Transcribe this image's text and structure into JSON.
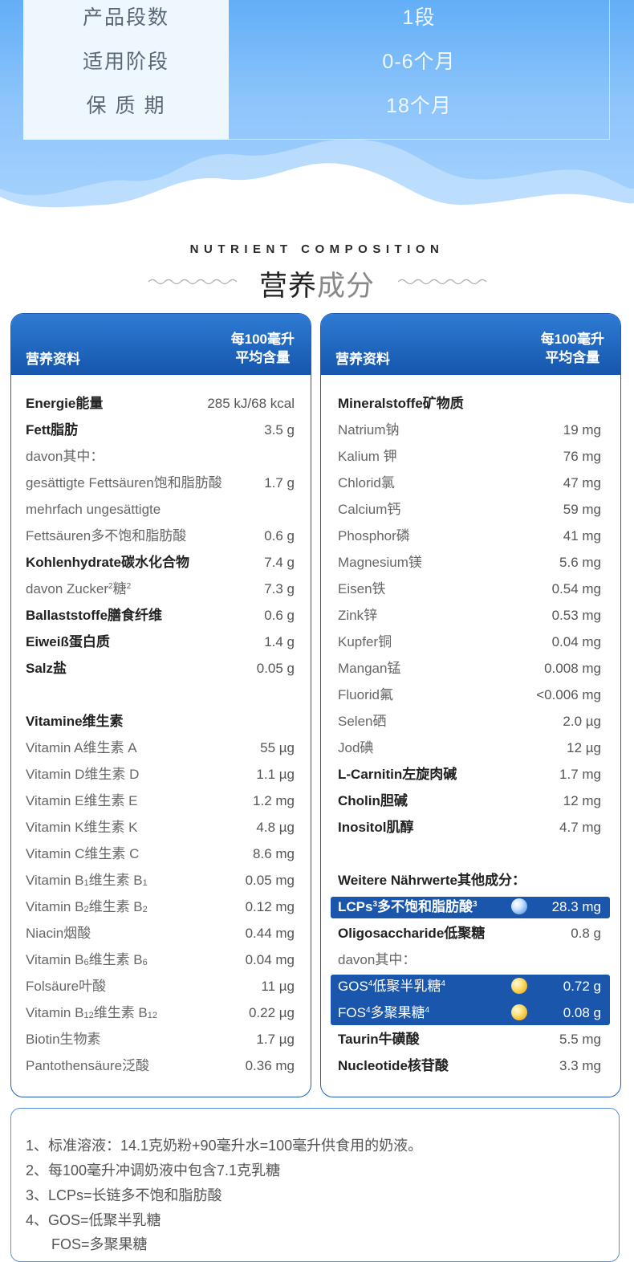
{
  "product_info": [
    {
      "label": "产品段数",
      "value": "1段"
    },
    {
      "label": "适用阶段",
      "value": "0-6个月"
    },
    {
      "label": "保 质 期",
      "value": "18个月"
    }
  ],
  "section": {
    "title_en": "NUTRIENT COMPOSITION",
    "title_cn_a": "营养",
    "title_cn_b": "成分"
  },
  "table_header": {
    "title": "营养资料",
    "unit_line1": "每100毫升",
    "unit_line2": "平均含量"
  },
  "left_rows": [
    {
      "name": "Energie能量",
      "value": "285 kJ/68 kcal",
      "bold": true
    },
    {
      "name": "Fett脂肪",
      "value": "3.5 g",
      "bold": true
    },
    {
      "name": "davon其中：",
      "value": ""
    },
    {
      "name": "gesättigte Fettsäuren饱和脂肪酸",
      "value": "1.7 g"
    },
    {
      "name": "mehrfach ungesättigte",
      "value": ""
    },
    {
      "name": "Fettsäuren多不饱和脂肪酸",
      "value": "0.6 g"
    },
    {
      "name": "Kohlenhydrate碳水化合物",
      "value": "7.4 g",
      "bold": true
    },
    {
      "name": "davon Zucker糖",
      "value": "7.3 g"
    },
    {
      "name": "Ballaststoffe膳食纤维",
      "value": "0.6 g",
      "bold": true
    },
    {
      "name": "Eiweiß蛋白质",
      "value": "1.4 g",
      "bold": true
    },
    {
      "name": "Salz盐",
      "value": "0.05 g",
      "bold": true
    },
    {
      "name": "Vitamine维生素",
      "value": "",
      "bold": true
    },
    {
      "name": "Vitamin A维生素 A",
      "value": "55 µg"
    },
    {
      "name": "Vitamin D维生素 D",
      "value": "1.1 µg"
    },
    {
      "name": "Vitamin E维生素 E",
      "value": "1.2 mg"
    },
    {
      "name": "Vitamin K维生素 K",
      "value": "4.8 µg"
    },
    {
      "name": "Vitamin C维生素 C",
      "value": "8.6 mg"
    },
    {
      "name": "Vitamin B1维生素 B1",
      "value": "0.05 mg"
    },
    {
      "name": "Vitamin B2维生素 B2",
      "value": "0.12 mg"
    },
    {
      "name": "Niacin烟酸",
      "value": "0.44 mg"
    },
    {
      "name": "Vitamin B6维生素 B6",
      "value": "0.04 mg"
    },
    {
      "name": "Folsäure叶酸",
      "value": "11 µg"
    },
    {
      "name": "Vitamin B12维生素 B12",
      "value": "0.22 µg"
    },
    {
      "name": "Biotin生物素",
      "value": "1.7 µg"
    },
    {
      "name": "Pantothensäure泛酸",
      "value": "0.36 mg"
    }
  ],
  "right_rows": [
    {
      "name": "Mineralstoffe矿物质",
      "value": "",
      "bold": true
    },
    {
      "name": "Natrium钠",
      "value": "19 mg"
    },
    {
      "name": "Kalium 钾",
      "value": "76 mg"
    },
    {
      "name": "Chlorid氯",
      "value": "47 mg"
    },
    {
      "name": "Calcium钙",
      "value": "59 mg"
    },
    {
      "name": "Phosphor磷",
      "value": "41 mg"
    },
    {
      "name": "Magnesium镁",
      "value": "5.6 mg"
    },
    {
      "name": "Eisen铁",
      "value": "0.54 mg"
    },
    {
      "name": "Zink锌",
      "value": "0.53 mg"
    },
    {
      "name": "Kupfer铜",
      "value": "0.04 mg"
    },
    {
      "name": "Mangan锰",
      "value": "0.008 mg"
    },
    {
      "name": "Fluorid氟",
      "value": "<0.006 mg"
    },
    {
      "name": "Selen硒",
      "value": "2.0 µg"
    },
    {
      "name": "Jod碘",
      "value": "12 µg"
    },
    {
      "name": "L-Carnitin左旋肉碱",
      "value": "1.7 mg",
      "bold": true
    },
    {
      "name": "Cholin胆碱",
      "value": "12 mg",
      "bold": true
    },
    {
      "name": "Inositol肌醇",
      "value": "4.7 mg",
      "bold": true
    },
    {
      "name": "Weitere Nährwerte其他成分：",
      "value": "",
      "bold": true
    },
    {
      "name": "LCPs多不饱和脂肪酸",
      "value": "28.3 mg",
      "bold": true
    },
    {
      "name": "Oligosaccharide低聚糖",
      "value": "0.8 g",
      "bold": true
    },
    {
      "name": "davon其中：",
      "value": ""
    },
    {
      "name": "GOS低聚半乳糖",
      "value": "0.72 g"
    },
    {
      "name": "FOS多聚果糖",
      "value": "0.08 g"
    },
    {
      "name": "Taurin牛磺酸",
      "value": "5.5 mg",
      "bold": true
    },
    {
      "name": "Nucleotide核苷酸",
      "value": "3.3 mg",
      "bold": true
    }
  ],
  "footnotes": [
    "1、标准溶液：14.1克奶粉+90毫升水=100毫升供食用的奶液。",
    "2、每100毫升冲调奶液中包含7.1克乳糖",
    "3、LCPs=长链多不饱和脂肪酸",
    "4、GOS=低聚半乳糖",
    "FOS=多聚果糖"
  ],
  "colors": {
    "header_blue": "#1656ad",
    "hero_blue": "#62aef7",
    "highlight": "#1a56ac"
  }
}
